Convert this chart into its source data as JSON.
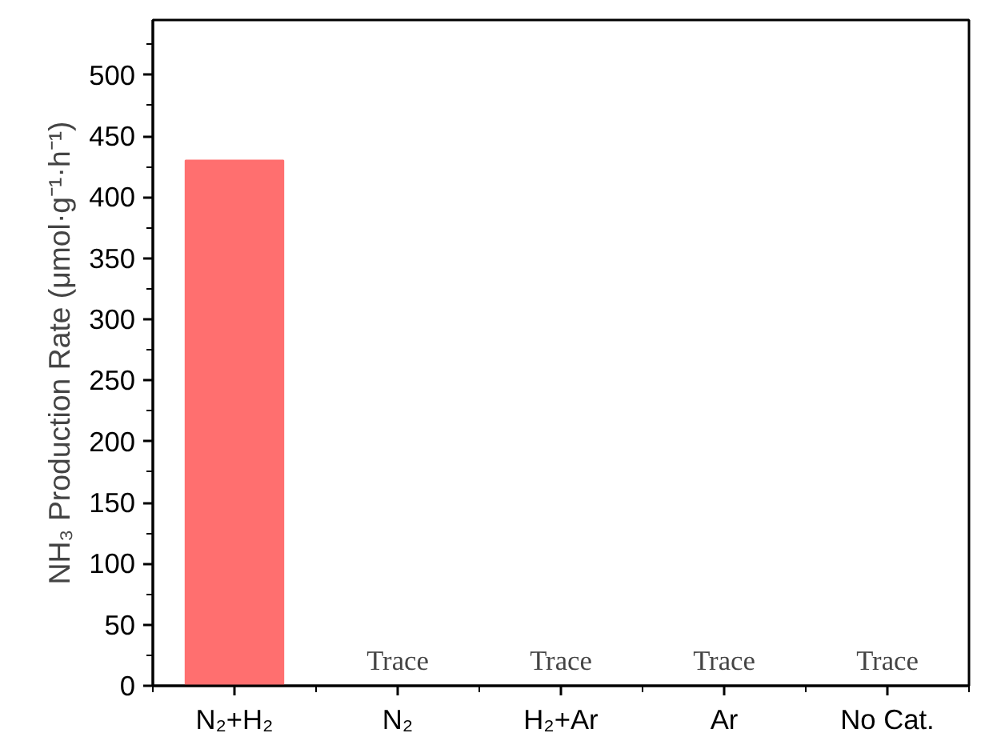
{
  "chart_data": {
    "type": "bar",
    "ylabel": "NH₃ Production Rate (μmol·g⁻¹·h⁻¹)",
    "categories": [
      "N₂+H₂",
      "N₂",
      "H₂+Ar",
      "Ar",
      "No Cat."
    ],
    "values": [
      430,
      0,
      0,
      0,
      0
    ],
    "value_labels": [
      null,
      "Trace",
      "Trace",
      "Trace",
      "Trace"
    ],
    "color": "#ff6f6f",
    "ylim": [
      0,
      545
    ],
    "yticks": [
      0,
      50,
      100,
      150,
      200,
      250,
      300,
      350,
      400,
      450,
      500
    ],
    "grid": false
  }
}
